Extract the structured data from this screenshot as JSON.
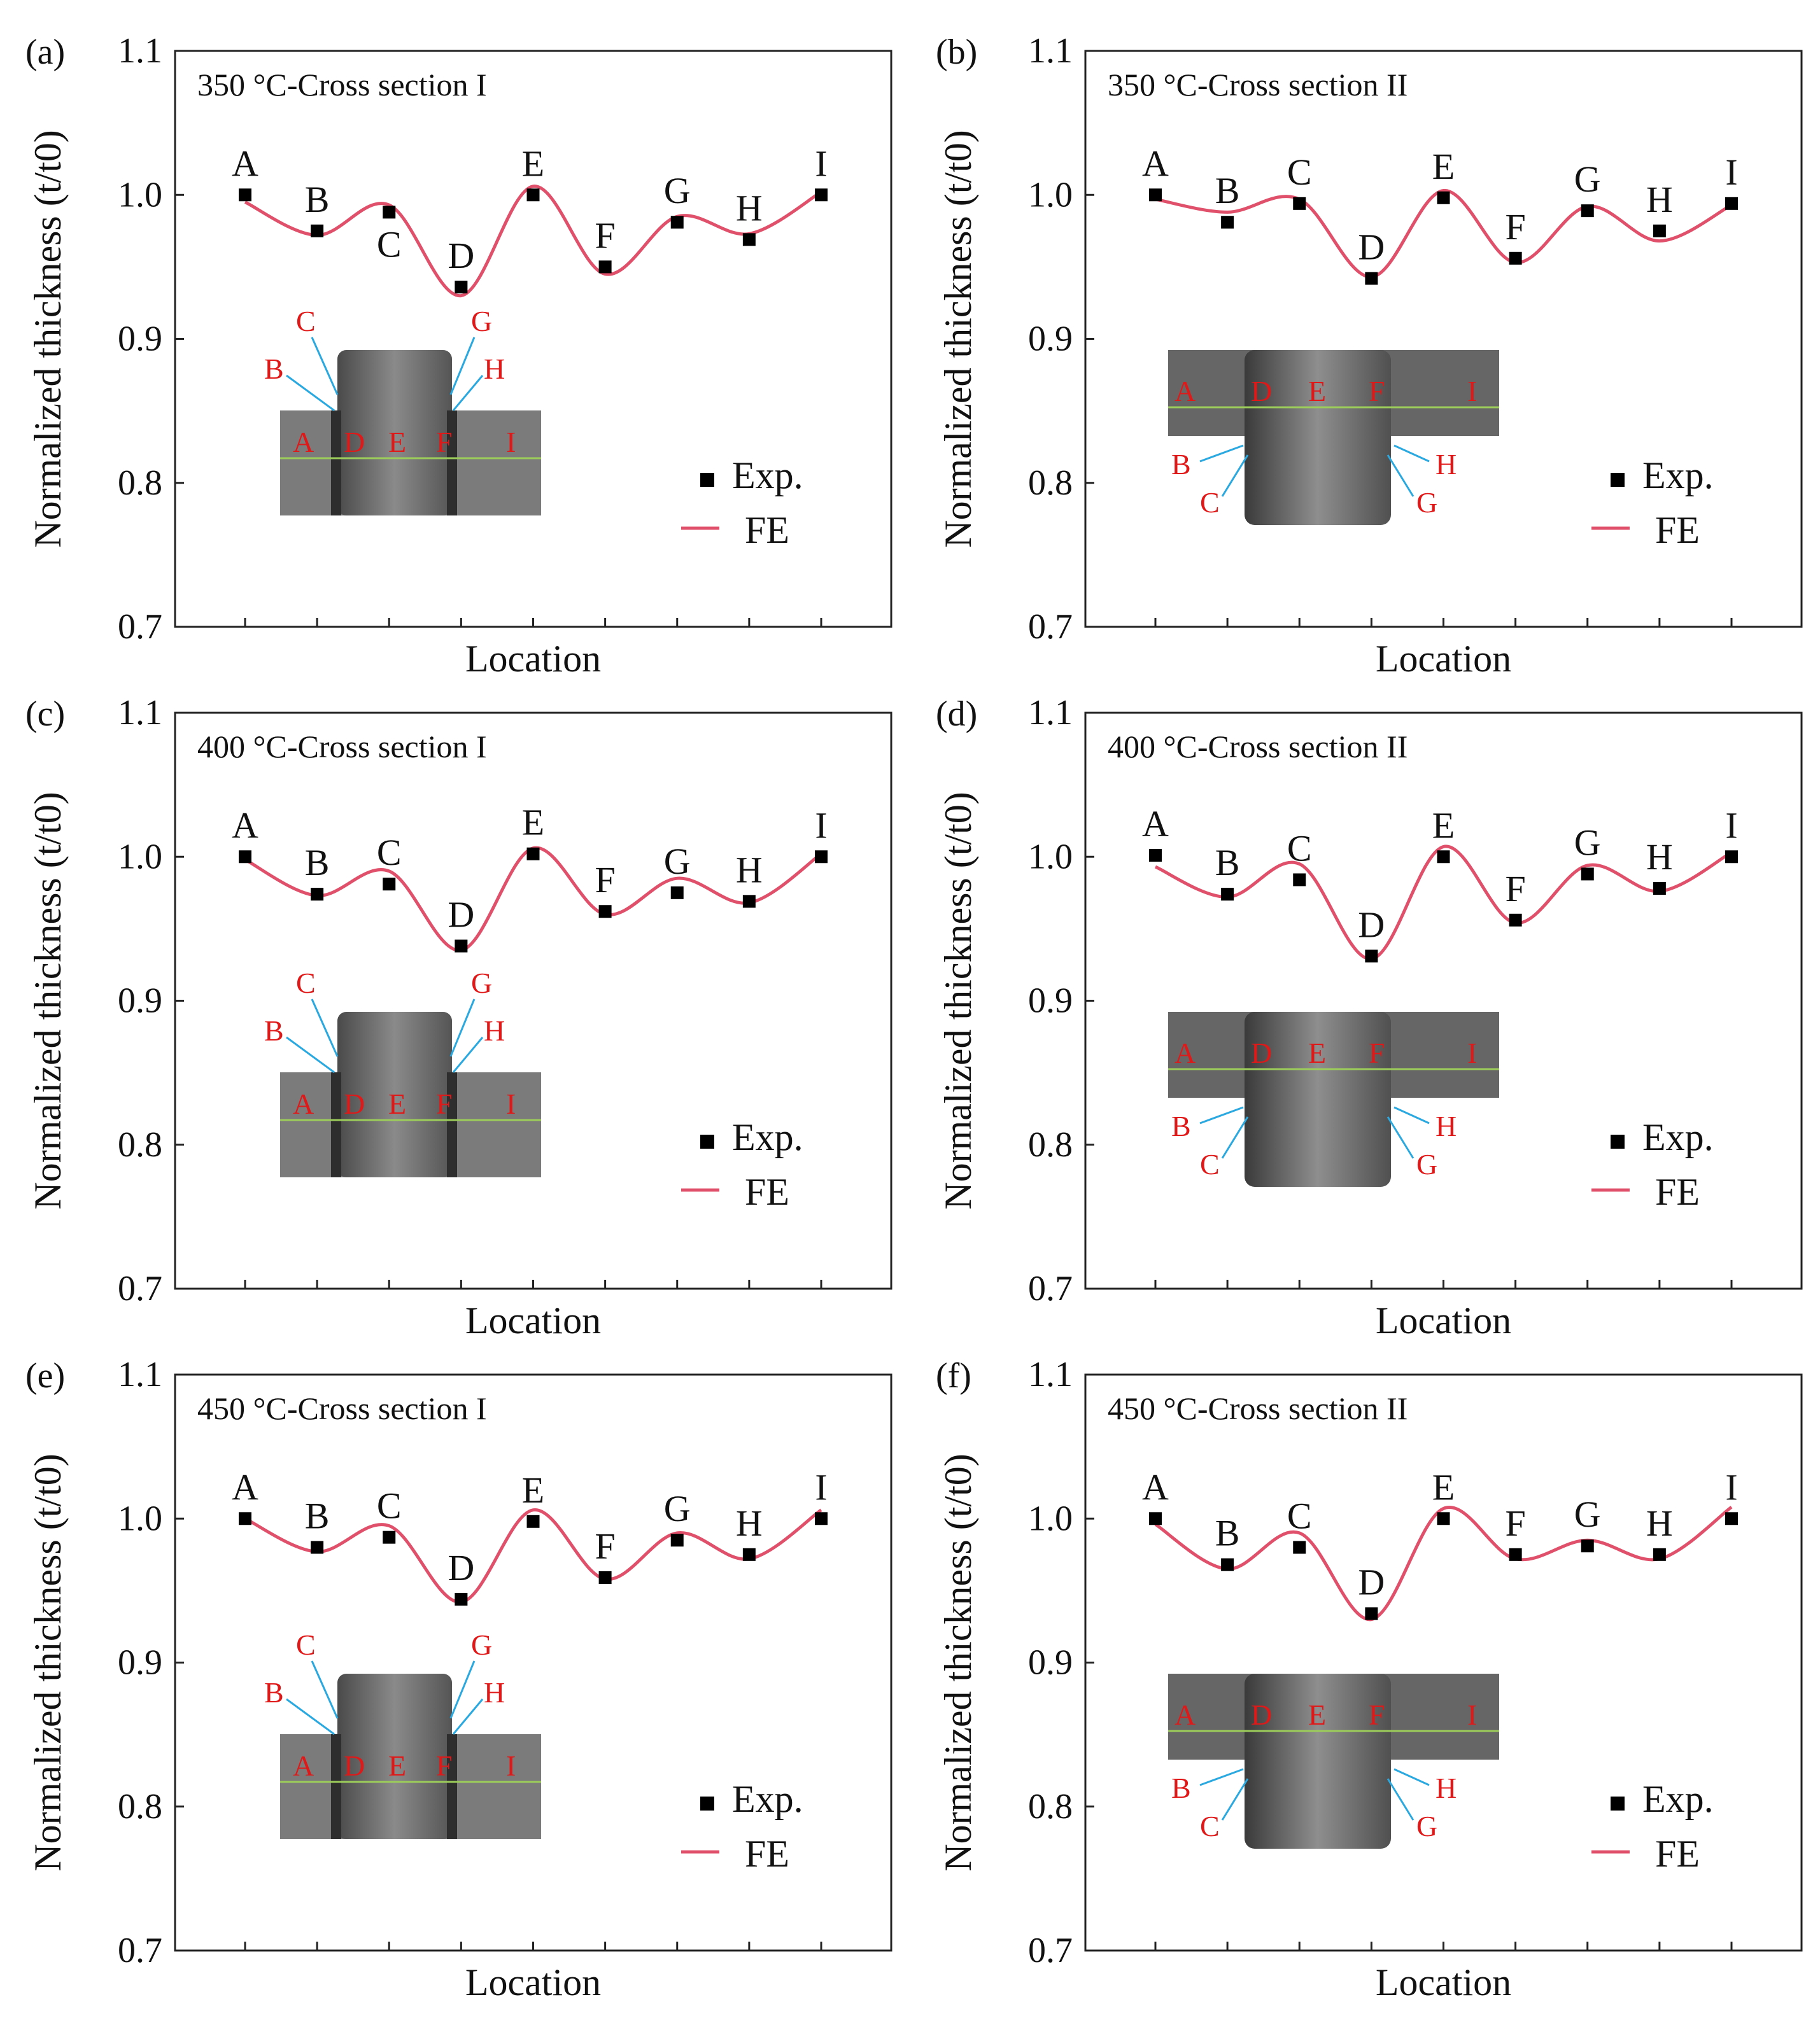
{
  "legend": {
    "exp": "Exp.",
    "fe": "FE"
  },
  "colors": {
    "fe_line": "#e0506a",
    "exp_marker": "#000000",
    "inset_label": "#e01818",
    "arrow": "#2aa8e0",
    "inset_line": "#9ccc5a"
  },
  "chart_data": [
    {
      "panel": "(a)",
      "type": "scatter",
      "title": "350 °C-Cross section I",
      "xlabel": "Location",
      "ylabel": "Normalized thickness (t/t0)",
      "ylim": [
        0.7,
        1.1
      ],
      "yticks": [
        "0.7",
        "0.8",
        "0.9",
        "1.0",
        "1.1"
      ],
      "categories": [
        "A",
        "B",
        "C",
        "D",
        "E",
        "F",
        "G",
        "H",
        "I"
      ],
      "series": [
        {
          "name": "Exp.",
          "values": [
            1.0,
            0.975,
            0.988,
            0.936,
            1.0,
            0.95,
            0.981,
            0.969,
            1.0
          ]
        },
        {
          "name": "FE",
          "values": [
            0.995,
            0.972,
            0.993,
            0.93,
            1.006,
            0.945,
            0.985,
            0.973,
            1.002
          ]
        }
      ],
      "inset": {
        "orientation": "up",
        "top_labels": [
          "C",
          "B",
          "G",
          "H"
        ],
        "bottom_labels": [
          "A",
          "D",
          "E",
          "F",
          "I"
        ]
      }
    },
    {
      "panel": "(b)",
      "type": "scatter",
      "title": "350 °C-Cross section II",
      "xlabel": "Location",
      "ylabel": "Normalized thickness (t/t0)",
      "ylim": [
        0.7,
        1.1
      ],
      "yticks": [
        "0.7",
        "0.8",
        "0.9",
        "1.0",
        "1.1"
      ],
      "categories": [
        "A",
        "B",
        "C",
        "D",
        "E",
        "F",
        "G",
        "H",
        "I"
      ],
      "series": [
        {
          "name": "Exp.",
          "values": [
            1.0,
            0.981,
            0.994,
            0.942,
            0.998,
            0.956,
            0.989,
            0.975,
            0.994
          ]
        },
        {
          "name": "FE",
          "values": [
            0.997,
            0.988,
            0.997,
            0.943,
            1.003,
            0.953,
            0.992,
            0.968,
            0.993
          ]
        }
      ],
      "inset": {
        "orientation": "down",
        "top_labels": [
          "A",
          "D",
          "E",
          "F",
          "I"
        ],
        "bottom_labels": [
          "B",
          "C",
          "H",
          "G"
        ]
      }
    },
    {
      "panel": "(c)",
      "type": "scatter",
      "title": "400 °C-Cross section I",
      "xlabel": "Location",
      "ylabel": "Normalized thickness (t/t0)",
      "ylim": [
        0.7,
        1.1
      ],
      "yticks": [
        "0.7",
        "0.8",
        "0.9",
        "1.0",
        "1.1"
      ],
      "categories": [
        "A",
        "B",
        "C",
        "D",
        "E",
        "F",
        "G",
        "H",
        "I"
      ],
      "series": [
        {
          "name": "Exp.",
          "values": [
            1.0,
            0.974,
            0.981,
            0.938,
            1.002,
            0.962,
            0.975,
            0.969,
            1.0
          ]
        },
        {
          "name": "FE",
          "values": [
            0.998,
            0.973,
            0.99,
            0.935,
            1.006,
            0.96,
            0.985,
            0.968,
            1.002
          ]
        }
      ],
      "inset": {
        "orientation": "up",
        "top_labels": [
          "C",
          "B",
          "G",
          "H"
        ],
        "bottom_labels": [
          "A",
          "D",
          "E",
          "F",
          "I"
        ]
      }
    },
    {
      "panel": "(d)",
      "type": "scatter",
      "title": "400 °C-Cross section II",
      "xlabel": "Location",
      "ylabel": "Normalized thickness (t/t0)",
      "ylim": [
        0.7,
        1.1
      ],
      "yticks": [
        "0.7",
        "0.8",
        "0.9",
        "1.0",
        "1.1"
      ],
      "categories": [
        "A",
        "B",
        "C",
        "D",
        "E",
        "F",
        "G",
        "H",
        "I"
      ],
      "series": [
        {
          "name": "Exp.",
          "values": [
            1.001,
            0.974,
            0.984,
            0.931,
            1.0,
            0.956,
            0.988,
            0.978,
            1.0
          ]
        },
        {
          "name": "FE",
          "values": [
            0.993,
            0.972,
            0.995,
            0.929,
            1.007,
            0.954,
            0.994,
            0.976,
            1.003
          ]
        }
      ],
      "inset": {
        "orientation": "down",
        "top_labels": [
          "A",
          "D",
          "E",
          "F",
          "I"
        ],
        "bottom_labels": [
          "B",
          "C",
          "H",
          "G"
        ]
      }
    },
    {
      "panel": "(e)",
      "type": "scatter",
      "title": "450 °C-Cross section I",
      "xlabel": "Location",
      "ylabel": "Normalized thickness (t/t0)",
      "ylim": [
        0.7,
        1.1
      ],
      "yticks": [
        "0.7",
        "0.8",
        "0.9",
        "1.0",
        "1.1"
      ],
      "categories": [
        "A",
        "B",
        "C",
        "D",
        "E",
        "F",
        "G",
        "H",
        "I"
      ],
      "series": [
        {
          "name": "Exp.",
          "values": [
            1.0,
            0.98,
            0.987,
            0.944,
            0.998,
            0.959,
            0.985,
            0.975,
            1.0
          ]
        },
        {
          "name": "FE",
          "values": [
            1.0,
            0.977,
            0.995,
            0.942,
            1.006,
            0.958,
            0.99,
            0.972,
            1.006
          ]
        }
      ],
      "inset": {
        "orientation": "up",
        "top_labels": [
          "C",
          "B",
          "G",
          "H"
        ],
        "bottom_labels": [
          "A",
          "D",
          "E",
          "F",
          "I"
        ]
      }
    },
    {
      "panel": "(f)",
      "type": "scatter",
      "title": "450 °C-Cross section II",
      "xlabel": "Location",
      "ylabel": "Normalized thickness (t/t0)",
      "ylim": [
        0.7,
        1.1
      ],
      "yticks": [
        "0.7",
        "0.8",
        "0.9",
        "1.0",
        "1.1"
      ],
      "categories": [
        "A",
        "B",
        "C",
        "D",
        "E",
        "F",
        "G",
        "H",
        "I"
      ],
      "series": [
        {
          "name": "Exp.",
          "values": [
            1.0,
            0.968,
            0.98,
            0.934,
            1.0,
            0.975,
            0.981,
            0.975,
            1.0
          ]
        },
        {
          "name": "FE",
          "values": [
            0.996,
            0.965,
            0.99,
            0.93,
            1.007,
            0.972,
            0.985,
            0.972,
            1.008
          ]
        }
      ],
      "inset": {
        "orientation": "down",
        "top_labels": [
          "A",
          "D",
          "E",
          "F",
          "I"
        ],
        "bottom_labels": [
          "B",
          "C",
          "H",
          "G"
        ]
      }
    }
  ]
}
